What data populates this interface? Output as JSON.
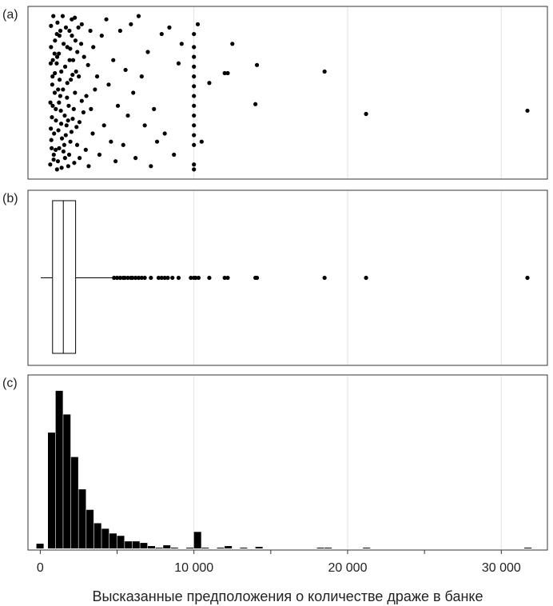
{
  "chart_data": {
    "type": "multi-panel",
    "xlabel": "Высказанные предположения о количестве драже в банке",
    "x_ticks": [
      0,
      10000,
      20000,
      30000
    ],
    "x_tick_labels": [
      "0",
      "10 000",
      "20 000",
      "30 000"
    ],
    "xlim": [
      -800,
      33000
    ],
    "grid": true,
    "panels": [
      {
        "id": "a",
        "label": "(a)",
        "type": "scatter",
        "description_free": true,
        "points": [
          [
            650,
            0.06
          ],
          [
            720,
            0.21
          ],
          [
            880,
            0.12
          ],
          [
            1020,
            0.33
          ],
          [
            1150,
            0.08
          ],
          [
            1300,
            0.48
          ],
          [
            780,
            0.55
          ],
          [
            950,
            0.62
          ],
          [
            1100,
            0.72
          ],
          [
            1250,
            0.85
          ],
          [
            700,
            0.91
          ],
          [
            850,
            0.97
          ],
          [
            1000,
            0.15
          ],
          [
            1180,
            0.27
          ],
          [
            1340,
            0.39
          ],
          [
            1480,
            0.52
          ],
          [
            1620,
            0.66
          ],
          [
            1760,
            0.78
          ],
          [
            1900,
            0.88
          ],
          [
            2050,
            0.95
          ],
          [
            660,
            0.44
          ],
          [
            760,
            0.35
          ],
          [
            900,
            0.25
          ],
          [
            1070,
            0.68
          ],
          [
            1210,
            0.74
          ],
          [
            1390,
            0.04
          ],
          [
            1560,
            0.18
          ],
          [
            1710,
            0.3
          ],
          [
            1850,
            0.42
          ],
          [
            1990,
            0.58
          ],
          [
            2140,
            0.7
          ],
          [
            2290,
            0.82
          ],
          [
            700,
            0.78
          ],
          [
            820,
            0.7
          ],
          [
            960,
            0.82
          ],
          [
            1120,
            0.93
          ],
          [
            1260,
            0.58
          ],
          [
            1410,
            0.22
          ],
          [
            1590,
            0.36
          ],
          [
            1740,
            0.47
          ],
          [
            1880,
            0.12
          ],
          [
            2030,
            0.26
          ],
          [
            2180,
            0.4
          ],
          [
            2330,
            0.63
          ],
          [
            2480,
            0.9
          ],
          [
            690,
            0.28
          ],
          [
            810,
            0.42
          ],
          [
            940,
            0.5
          ],
          [
            1090,
            0.03
          ],
          [
            1230,
            0.16
          ],
          [
            1370,
            0.63
          ],
          [
            1520,
            0.8
          ],
          [
            1670,
            0.9
          ],
          [
            1820,
            0.05
          ],
          [
            1960,
            0.2
          ],
          [
            2110,
            0.34
          ],
          [
            2260,
            0.5
          ],
          [
            2410,
            0.75
          ],
          [
            2560,
            0.1
          ],
          [
            2700,
            0.45
          ],
          [
            740,
            0.16
          ],
          [
            870,
            0.09
          ],
          [
            1010,
            0.4
          ],
          [
            1160,
            0.52
          ],
          [
            1310,
            0.88
          ],
          [
            1460,
            0.97
          ],
          [
            1610,
            0.1
          ],
          [
            1760,
            0.56
          ],
          [
            1910,
            0.7
          ],
          [
            2060,
            0.85
          ],
          [
            2210,
            0.07
          ],
          [
            2360,
            0.29
          ],
          [
            2510,
            0.6
          ],
          [
            2660,
            0.8
          ],
          [
            2810,
            0.38
          ],
          [
            2960,
            0.15
          ],
          [
            3110,
            0.67
          ],
          [
            3260,
            0.88
          ],
          [
            3410,
            0.25
          ],
          [
            3560,
            0.52
          ],
          [
            680,
            0.68
          ],
          [
            800,
            0.6
          ],
          [
            930,
            0.74
          ],
          [
            1080,
            0.86
          ],
          [
            1220,
            0.44
          ],
          [
            1360,
            0.31
          ],
          [
            1510,
            0.14
          ],
          [
            1660,
            0.24
          ],
          [
            1810,
            0.33
          ],
          [
            1950,
            0.77
          ],
          [
            2100,
            0.61
          ],
          [
            2250,
            0.96
          ],
          [
            2400,
            0.18
          ],
          [
            2550,
            0.32
          ],
          [
            2700,
            0.92
          ],
          [
            2850,
            0.72
          ],
          [
            3000,
            0.48
          ],
          [
            3150,
            0.05
          ],
          [
            3300,
            0.4
          ],
          [
            3450,
            0.78
          ],
          [
            3700,
            0.6
          ],
          [
            3850,
            0.12
          ],
          [
            4000,
            0.85
          ],
          [
            4150,
            0.3
          ],
          [
            4300,
            0.95
          ],
          [
            4450,
            0.55
          ],
          [
            4600,
            0.2
          ],
          [
            4750,
            0.7
          ],
          [
            4900,
            0.08
          ],
          [
            5050,
            0.42
          ],
          [
            5200,
            0.88
          ],
          [
            5400,
            0.18
          ],
          [
            5550,
            0.64
          ],
          [
            5700,
            0.36
          ],
          [
            5900,
            0.92
          ],
          [
            6050,
            0.5
          ],
          [
            6200,
            0.1
          ],
          [
            6400,
            0.97
          ],
          [
            6600,
            0.6
          ],
          [
            6800,
            0.3
          ],
          [
            7000,
            0.75
          ],
          [
            7200,
            0.05
          ],
          [
            7400,
            0.4
          ],
          [
            7600,
            0.2
          ],
          [
            7900,
            0.86
          ],
          [
            8100,
            0.25
          ],
          [
            8400,
            0.9
          ],
          [
            8700,
            0.12
          ],
          [
            9000,
            0.68
          ],
          [
            9200,
            0.8
          ],
          [
            10000,
            0.03
          ],
          [
            10000,
            0.06
          ],
          [
            10000,
            0.18
          ],
          [
            10000,
            0.24
          ],
          [
            10000,
            0.3
          ],
          [
            10000,
            0.36
          ],
          [
            10000,
            0.42
          ],
          [
            10000,
            0.48
          ],
          [
            10000,
            0.54
          ],
          [
            10000,
            0.6
          ],
          [
            10000,
            0.66
          ],
          [
            10000,
            0.72
          ],
          [
            10000,
            0.78
          ],
          [
            10000,
            0.86
          ],
          [
            10250,
            0.92
          ],
          [
            10500,
            0.2
          ],
          [
            11000,
            0.56
          ],
          [
            12000,
            0.62
          ],
          [
            12200,
            0.62
          ],
          [
            12500,
            0.8
          ],
          [
            14000,
            0.43
          ],
          [
            14100,
            0.67
          ],
          [
            18500,
            0.63
          ],
          [
            21200,
            0.37
          ],
          [
            31700,
            0.39
          ]
        ]
      },
      {
        "id": "b",
        "label": "(b)",
        "type": "boxplot",
        "whisker_low": 30,
        "q1": 800,
        "median": 1500,
        "q3": 2300,
        "whisker_high": 4700,
        "outliers": [
          4800,
          5000,
          5200,
          5400,
          5500,
          5700,
          5900,
          6000,
          6200,
          6400,
          6600,
          6800,
          7200,
          7700,
          7900,
          8100,
          8300,
          8600,
          9000,
          9800,
          10000,
          10100,
          10300,
          11000,
          12000,
          12200,
          14000,
          14100,
          18500,
          21200,
          31700
        ]
      },
      {
        "id": "c",
        "label": "(c)",
        "type": "histogram",
        "bin_width": 500,
        "bins": [
          {
            "start": -250,
            "count": 6
          },
          {
            "start": 500,
            "count": 147
          },
          {
            "start": 1000,
            "count": 200
          },
          {
            "start": 1500,
            "count": 170
          },
          {
            "start": 2000,
            "count": 116
          },
          {
            "start": 2500,
            "count": 75
          },
          {
            "start": 3000,
            "count": 49
          },
          {
            "start": 3500,
            "count": 32
          },
          {
            "start": 4000,
            "count": 25
          },
          {
            "start": 4500,
            "count": 19
          },
          {
            "start": 5000,
            "count": 16
          },
          {
            "start": 5500,
            "count": 9
          },
          {
            "start": 6000,
            "count": 9
          },
          {
            "start": 6500,
            "count": 7
          },
          {
            "start": 7000,
            "count": 3
          },
          {
            "start": 7500,
            "count": 1
          },
          {
            "start": 8000,
            "count": 4
          },
          {
            "start": 8500,
            "count": 1
          },
          {
            "start": 9500,
            "count": 1
          },
          {
            "start": 10000,
            "count": 21
          },
          {
            "start": 10500,
            "count": 1
          },
          {
            "start": 11500,
            "count": 1
          },
          {
            "start": 12000,
            "count": 3
          },
          {
            "start": 13000,
            "count": 1
          },
          {
            "start": 14000,
            "count": 2
          },
          {
            "start": 18000,
            "count": 1
          },
          {
            "start": 18500,
            "count": 1
          },
          {
            "start": 21000,
            "count": 1
          },
          {
            "start": 31500,
            "count": 1
          }
        ],
        "ylim": [
          0,
          210
        ]
      }
    ]
  }
}
